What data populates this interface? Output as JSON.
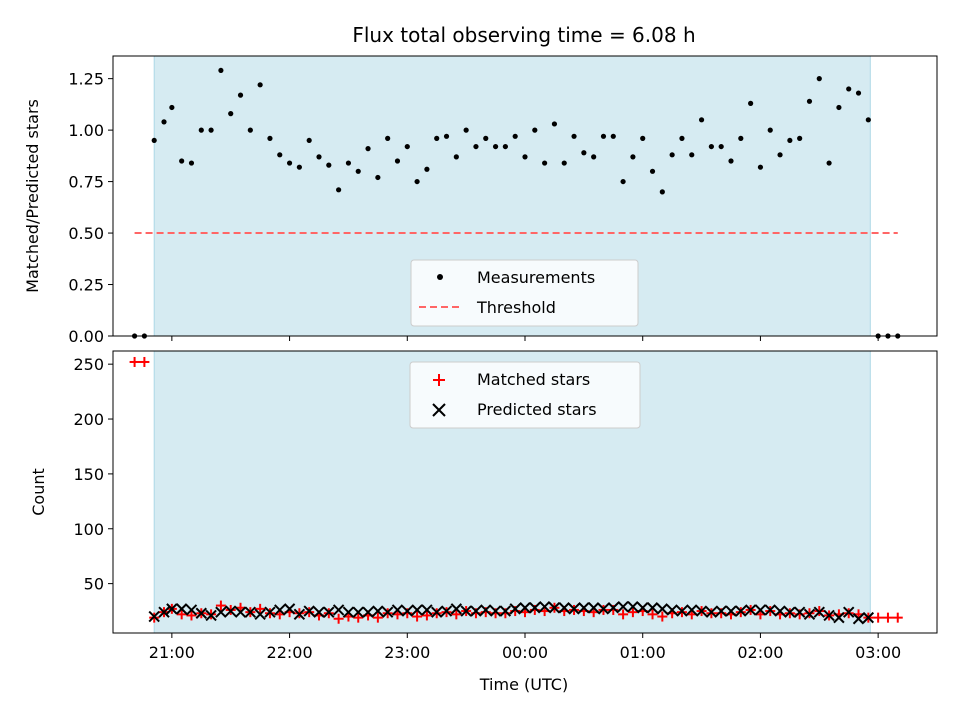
{
  "title": "Flux total observing time = 6.08 h",
  "colors": {
    "observing_band": "#add8e6",
    "measurement": "#000000",
    "threshold": "#ff6666",
    "matched": "#ff0000",
    "predicted": "#000000"
  },
  "chart_data": [
    {
      "type": "scatter",
      "ylabel": "Matched/Predicted stars",
      "xlabel": "",
      "ylim": [
        0,
        1.36
      ],
      "yticks": [
        "0.00",
        "0.25",
        "0.50",
        "0.75",
        "1.00",
        "1.25"
      ],
      "grid": false,
      "legend_position": "lower center",
      "observing_window": [
        "20:51",
        "02:56"
      ],
      "series": [
        {
          "name": "Measurements",
          "marker": "dot",
          "x": [
            "20:41",
            "20:46",
            "20:51",
            "20:56",
            "21:00",
            "21:05",
            "21:10",
            "21:15",
            "21:20",
            "21:25",
            "21:30",
            "21:35",
            "21:40",
            "21:45",
            "21:50",
            "21:55",
            "22:00",
            "22:05",
            "22:10",
            "22:15",
            "22:20",
            "22:25",
            "22:30",
            "22:35",
            "22:40",
            "22:45",
            "22:50",
            "22:55",
            "23:00",
            "23:05",
            "23:10",
            "23:15",
            "23:20",
            "23:25",
            "23:30",
            "23:35",
            "23:40",
            "23:45",
            "23:50",
            "23:55",
            "00:00",
            "00:05",
            "00:10",
            "00:15",
            "00:20",
            "00:25",
            "00:30",
            "00:35",
            "00:40",
            "00:45",
            "00:50",
            "00:55",
            "01:00",
            "01:05",
            "01:10",
            "01:15",
            "01:20",
            "01:25",
            "01:30",
            "01:35",
            "01:40",
            "01:45",
            "01:50",
            "01:55",
            "02:00",
            "02:05",
            "02:10",
            "02:15",
            "02:20",
            "02:25",
            "02:30",
            "02:35",
            "02:40",
            "02:45",
            "02:50",
            "02:55",
            "03:00",
            "03:05",
            "03:10"
          ],
          "y": [
            0.0,
            0.0,
            0.95,
            1.04,
            1.11,
            0.85,
            0.84,
            1.0,
            1.0,
            1.29,
            1.08,
            1.17,
            1.0,
            1.22,
            0.96,
            0.88,
            0.84,
            0.82,
            0.95,
            0.87,
            0.83,
            0.71,
            0.84,
            0.8,
            0.91,
            0.77,
            0.96,
            0.85,
            0.92,
            0.75,
            0.81,
            0.96,
            0.97,
            0.87,
            1.0,
            0.92,
            0.96,
            0.92,
            0.92,
            0.97,
            0.87,
            1.0,
            0.84,
            1.03,
            0.84,
            0.97,
            0.89,
            0.87,
            0.97,
            0.97,
            0.75,
            0.87,
            0.96,
            0.8,
            0.7,
            0.88,
            0.96,
            0.88,
            1.05,
            0.92,
            0.92,
            0.85,
            0.96,
            1.13,
            0.82,
            1.0,
            0.88,
            0.95,
            0.96,
            1.14,
            1.25,
            0.84,
            1.11,
            1.2,
            1.18,
            1.05,
            0.0,
            0.0,
            0.0
          ]
        },
        {
          "name": "Threshold",
          "style": "dashed",
          "x": [
            "20:41",
            "03:10"
          ],
          "y": [
            0.5,
            0.5
          ]
        }
      ]
    },
    {
      "type": "scatter",
      "xlabel": "Time (UTC)",
      "ylabel": "Count",
      "ylim": [
        5,
        262
      ],
      "yticks": [
        "50",
        "100",
        "150",
        "200",
        "250"
      ],
      "xticks": [
        "21:00",
        "22:00",
        "23:00",
        "00:00",
        "01:00",
        "02:00",
        "03:00"
      ],
      "grid": false,
      "legend_position": "upper center",
      "observing_window": [
        "20:51",
        "02:56"
      ],
      "series": [
        {
          "name": "Matched stars",
          "marker": "plus",
          "x": [
            "20:41",
            "20:46",
            "20:51",
            "20:56",
            "21:00",
            "21:05",
            "21:10",
            "21:15",
            "21:20",
            "21:25",
            "21:30",
            "21:35",
            "21:40",
            "21:45",
            "21:50",
            "21:55",
            "22:00",
            "22:05",
            "22:10",
            "22:15",
            "22:20",
            "22:25",
            "22:30",
            "22:35",
            "22:40",
            "22:45",
            "22:50",
            "22:55",
            "23:00",
            "23:05",
            "23:10",
            "23:15",
            "23:20",
            "23:25",
            "23:30",
            "23:35",
            "23:40",
            "23:45",
            "23:50",
            "23:55",
            "00:00",
            "00:05",
            "00:10",
            "00:15",
            "00:20",
            "00:25",
            "00:30",
            "00:35",
            "00:40",
            "00:45",
            "00:50",
            "00:55",
            "01:00",
            "01:05",
            "01:10",
            "01:15",
            "01:20",
            "01:25",
            "01:30",
            "01:35",
            "01:40",
            "01:45",
            "01:50",
            "01:55",
            "02:00",
            "02:05",
            "02:10",
            "02:15",
            "02:20",
            "02:25",
            "02:30",
            "02:35",
            "02:40",
            "02:45",
            "02:50",
            "02:55",
            "03:00",
            "03:05",
            "03:10"
          ],
          "y": [
            252,
            252,
            19,
            24,
            27,
            22,
            21,
            23,
            22,
            30,
            26,
            28,
            24,
            27,
            23,
            22,
            24,
            23,
            24,
            21,
            23,
            18,
            20,
            19,
            21,
            19,
            23,
            22,
            23,
            20,
            21,
            23,
            24,
            22,
            25,
            23,
            24,
            23,
            23,
            25,
            24,
            26,
            25,
            28,
            25,
            26,
            25,
            24,
            26,
            26,
            22,
            24,
            25,
            22,
            20,
            23,
            24,
            22,
            25,
            23,
            23,
            22,
            24,
            26,
            22,
            25,
            22,
            23,
            22,
            23,
            25,
            21,
            22,
            23,
            22,
            19,
            19,
            19,
            19
          ]
        },
        {
          "name": "Predicted stars",
          "marker": "x",
          "x": [
            "20:51",
            "20:56",
            "21:00",
            "21:05",
            "21:10",
            "21:15",
            "21:20",
            "21:25",
            "21:30",
            "21:35",
            "21:40",
            "21:45",
            "21:50",
            "21:55",
            "22:00",
            "22:05",
            "22:10",
            "22:15",
            "22:20",
            "22:25",
            "22:30",
            "22:35",
            "22:40",
            "22:45",
            "22:50",
            "22:55",
            "23:00",
            "23:05",
            "23:10",
            "23:15",
            "23:20",
            "23:25",
            "23:30",
            "23:35",
            "23:40",
            "23:45",
            "23:50",
            "23:55",
            "00:00",
            "00:05",
            "00:10",
            "00:15",
            "00:20",
            "00:25",
            "00:30",
            "00:35",
            "00:40",
            "00:45",
            "00:50",
            "00:55",
            "01:00",
            "01:05",
            "01:10",
            "01:15",
            "01:20",
            "01:25",
            "01:30",
            "01:35",
            "01:40",
            "01:45",
            "01:50",
            "01:55",
            "02:00",
            "02:05",
            "02:10",
            "02:15",
            "02:20",
            "02:25",
            "02:30",
            "02:35",
            "02:40",
            "02:45",
            "02:50",
            "02:55"
          ],
          "y": [
            20,
            24,
            27,
            27,
            26,
            23,
            21,
            24,
            25,
            24,
            24,
            22,
            24,
            26,
            27,
            22,
            25,
            24,
            24,
            26,
            24,
            24,
            24,
            25,
            24,
            26,
            25,
            26,
            26,
            24,
            25,
            27,
            25,
            25,
            26,
            25,
            25,
            27,
            28,
            28,
            29,
            28,
            28,
            27,
            28,
            28,
            27,
            28,
            29,
            29,
            28,
            28,
            27,
            26,
            25,
            26,
            25,
            24,
            25,
            25,
            25,
            26,
            26,
            26,
            25,
            24,
            24,
            22,
            24,
            21,
            19,
            24,
            18,
            19
          ]
        }
      ]
    }
  ]
}
